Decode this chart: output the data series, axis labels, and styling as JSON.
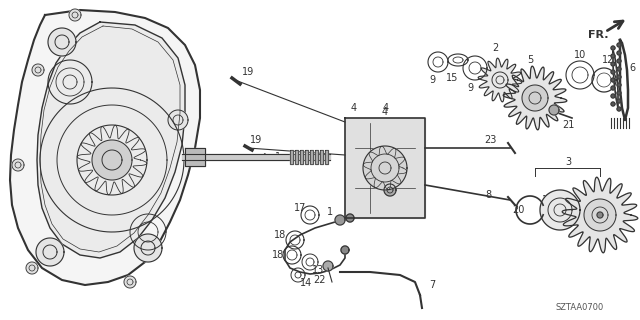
{
  "bg_color": "#ffffff",
  "line_color": "#333333",
  "code": "SZTAA0700",
  "figsize": [
    6.4,
    3.2
  ],
  "dpi": 100
}
